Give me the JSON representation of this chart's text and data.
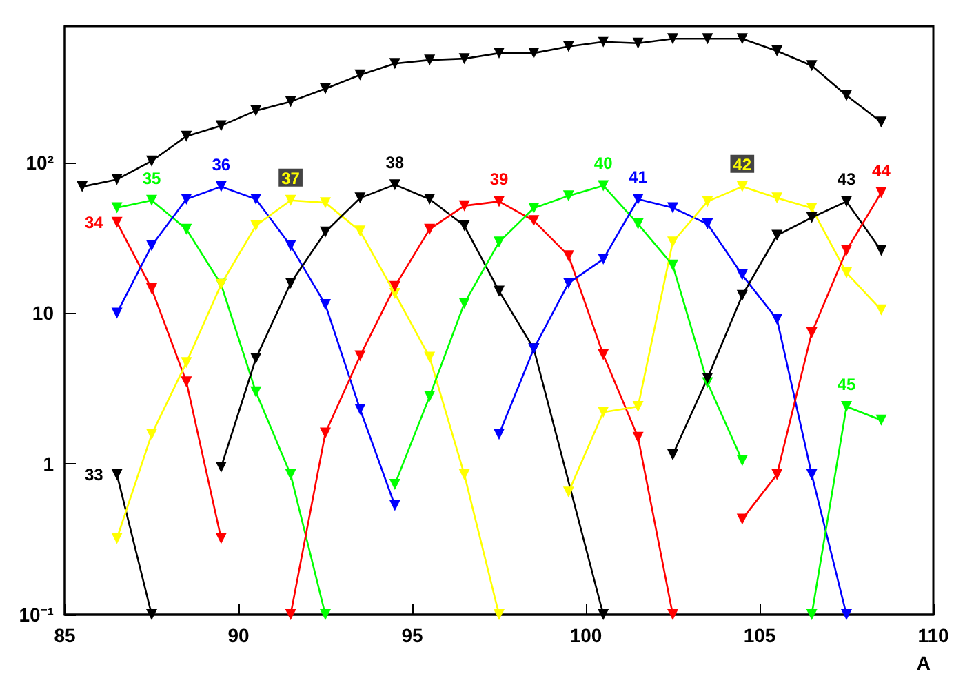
{
  "chart_data": {
    "type": "line",
    "xlabel": "A",
    "log": "y",
    "marker": "triangle",
    "line_style": "solid",
    "xlim": [
      85,
      110
    ],
    "xticks": [
      85,
      90,
      95,
      100,
      105,
      110
    ],
    "ylim": [
      0.1,
      800
    ],
    "yticks": [
      {
        "value": 0.1,
        "label": "10⁻¹"
      },
      1,
      10,
      {
        "value": 100,
        "label": "10²"
      }
    ],
    "series": [
      {
        "color": "#000000",
        "x": [
          85.5,
          86.5,
          87.5,
          88.5,
          89.5,
          90.5,
          91.5,
          92.5,
          93.5,
          94.5,
          95.5,
          96.5,
          97.5,
          98.5,
          99.5,
          100.5,
          101.5,
          102.5,
          103.5,
          104.5,
          105.5,
          106.5,
          107.5,
          108.5
        ],
        "values": [
          69,
          77,
          102,
          149,
          175,
          220,
          253,
          308,
          380,
          452,
          477,
          487,
          530,
          530,
          587,
          630,
          617,
          660,
          660,
          660,
          548,
          438,
          278,
          185
        ]
      },
      {
        "name": "33",
        "color": "#000000",
        "x": [
          86.5,
          87.5
        ],
        "values": [
          0.85,
          0.1
        ]
      },
      {
        "name": "34",
        "color": "#ff0000",
        "x": [
          86.5,
          87.5,
          88.5,
          89.5
        ],
        "values": [
          40,
          14.5,
          3.5,
          0.32
        ]
      },
      {
        "name": "35",
        "color": "#00ff00",
        "x": [
          86.5,
          87.5,
          88.5,
          89.5,
          90.5,
          91.5,
          92.5
        ],
        "values": [
          50,
          56,
          36,
          15.5,
          3,
          0.85,
          0.1
        ]
      },
      {
        "name": "36",
        "color": "#0000ff",
        "x": [
          86.5,
          87.5,
          88.5,
          89.5,
          90.5,
          91.5,
          92.5,
          93.5,
          94.5
        ],
        "values": [
          10,
          28,
          57,
          69,
          57,
          28,
          11.4,
          2.3,
          0.53
        ]
      },
      {
        "name": "37",
        "color": "#ffff00",
        "x": [
          86.5,
          87.5,
          88.5,
          89.5,
          90.5,
          91.5,
          92.5,
          93.5,
          94.5,
          95.5,
          96.5,
          97.5
        ],
        "values": [
          0.32,
          1.57,
          4.7,
          15.5,
          38,
          56,
          54,
          35,
          13.5,
          5.1,
          0.85,
          0.1
        ]
      },
      {
        "name": "38",
        "color": "#000000",
        "x": [
          89.5,
          90.5,
          91.5,
          92.5,
          93.5,
          94.5,
          95.5,
          96.5,
          97.5,
          98.5,
          99.5,
          100.5
        ],
        "values": [
          0.95,
          5,
          15.8,
          34.5,
          58,
          71,
          57,
          38,
          14,
          5.8,
          null,
          0.1
        ]
      },
      {
        "name": "39",
        "color": "#ff0000",
        "x": [
          91.5,
          92.5,
          93.5,
          94.5,
          95.5,
          96.5,
          97.5,
          98.5,
          99.5,
          100.5,
          101.5,
          102.5
        ],
        "values": [
          0.1,
          1.6,
          5.2,
          15,
          36,
          51.5,
          55,
          41,
          24,
          5.3,
          1.5,
          0.1
        ]
      },
      {
        "name": "40",
        "color": "#00ff00",
        "x": [
          94.5,
          95.5,
          96.5,
          97.5,
          98.5,
          99.5,
          100.5,
          101.5,
          102.5,
          103.5,
          104.5
        ],
        "values": [
          0.73,
          2.8,
          11.6,
          29.6,
          49.7,
          60,
          70,
          39,
          20.8,
          3.45,
          1.05
        ]
      },
      {
        "name": "41",
        "color": "#0000ff",
        "x": [
          97.5,
          98.5,
          99.5,
          100.5,
          101.5,
          102.5,
          103.5,
          104.5,
          105.5,
          106.5,
          107.5
        ],
        "values": [
          1.57,
          5.8,
          15.8,
          22.8,
          57,
          50,
          39,
          17.9,
          9.1,
          0.85,
          0.1
        ]
      },
      {
        "name": "42",
        "color": "#ffff00",
        "x": [
          99.5,
          100.5,
          101.5,
          102.5,
          103.5,
          104.5,
          105.5,
          106.5,
          107.5,
          108.5
        ],
        "values": [
          0.65,
          2.2,
          2.4,
          29.6,
          55,
          69,
          58,
          49.7,
          18.5,
          10.5
        ]
      },
      {
        "name": "43",
        "color": "#000000",
        "x": [
          102.5,
          103.5,
          104.5,
          105.5,
          106.5,
          107.5,
          108.5
        ],
        "values": [
          1.15,
          3.7,
          13.1,
          32.8,
          43,
          55,
          26
        ]
      },
      {
        "name": "44",
        "color": "#ff0000",
        "x": [
          104.5,
          105.5,
          106.5,
          107.5,
          108.5
        ],
        "values": [
          0.43,
          0.85,
          7.4,
          26,
          63
        ]
      },
      {
        "name": "45",
        "color": "#00ff00",
        "x": [
          106.5,
          107.5,
          108.5
        ],
        "values": [
          0.1,
          2.4,
          1.95
        ]
      }
    ]
  }
}
